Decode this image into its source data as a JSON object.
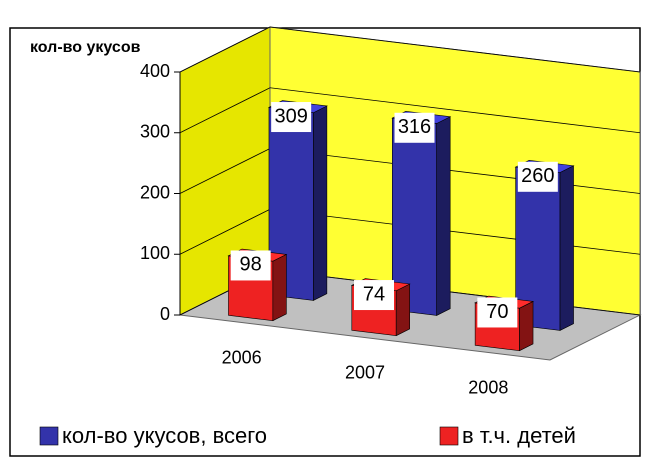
{
  "chart_data": {
    "type": "bar",
    "y_label": "кол-во укусов",
    "categories": [
      "2006",
      "2007",
      "2008"
    ],
    "series": [
      {
        "name": "кол-во укусов, всего",
        "color": "#3333aa",
        "values": [
          309,
          316,
          260
        ]
      },
      {
        "name": "в т.ч. детей",
        "color": "#ee2222",
        "values": [
          98,
          74,
          70
        ]
      }
    ],
    "ylim": [
      0,
      400
    ],
    "yticks": [
      0,
      100,
      200,
      300,
      400
    ],
    "grid": true,
    "legend": "bottom"
  }
}
